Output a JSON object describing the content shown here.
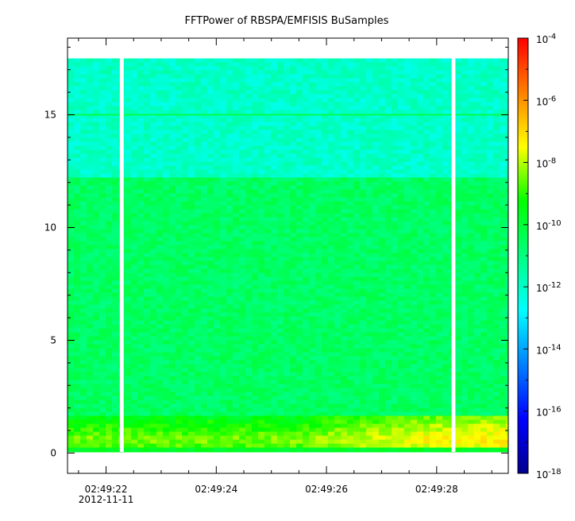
{
  "chart_data": {
    "type": "heatmap",
    "title": "FFTPower of RBSPA/EMFISIS  BuSamples",
    "xlabel": "",
    "ylabel": "",
    "x_axis": {
      "start": "02:49:21.3",
      "end": "02:49:29.3",
      "ticks": [
        {
          "time": "02:49:22",
          "label": "02:49:22",
          "sublabel": "2012-11-11"
        },
        {
          "time": "02:49:24",
          "label": "02:49:24",
          "sublabel": ""
        },
        {
          "time": "02:49:26",
          "label": "02:49:26",
          "sublabel": ""
        },
        {
          "time": "02:49:28",
          "label": "02:49:28",
          "sublabel": ""
        }
      ],
      "minor_ticks": [
        "02:49:21.5",
        "02:49:22.5",
        "02:49:23",
        "02:49:23.5",
        "02:49:24.5",
        "02:49:25",
        "02:49:25.5",
        "02:49:26.5",
        "02:49:27",
        "02:49:27.5",
        "02:49:28.5",
        "02:49:29"
      ]
    },
    "y_axis": {
      "range": [
        -0.9,
        18.4
      ],
      "ticks": [
        0,
        5,
        10,
        15
      ],
      "tick_labels": [
        "0",
        "5",
        "10",
        "15"
      ],
      "minor_ticks": [
        1,
        2,
        3,
        4,
        6,
        7,
        8,
        9,
        11,
        12,
        13,
        14,
        16,
        17,
        18
      ]
    },
    "colorbar": {
      "scale": "log",
      "range": [
        1e-18,
        0.0001
      ],
      "ticks": [
        {
          "exp": -4,
          "label": "10",
          "sup": "-4"
        },
        {
          "exp": -6,
          "label": "10",
          "sup": "-6"
        },
        {
          "exp": -8,
          "label": "10",
          "sup": "-8"
        },
        {
          "exp": -10,
          "label": "10",
          "sup": "-10"
        },
        {
          "exp": -12,
          "label": "10",
          "sup": "-12"
        },
        {
          "exp": -14,
          "label": "10",
          "sup": "-14"
        },
        {
          "exp": -16,
          "label": "10",
          "sup": "-16"
        },
        {
          "exp": -18,
          "label": "10",
          "sup": "-18"
        }
      ]
    },
    "data_extent": {
      "y_min": 0.05,
      "y_max": 17.5
    },
    "gaps": [
      {
        "start": "02:49:22.25",
        "end": "02:49:22.32"
      },
      {
        "start": "02:49:28.27",
        "end": "02:49:28.34"
      }
    ],
    "bands": [
      {
        "y_from": 12.2,
        "y_to": 17.5,
        "log_power": -12.0
      },
      {
        "y_from": 1.6,
        "y_to": 12.2,
        "log_power": -10.6
      },
      {
        "y_from": 0.05,
        "y_to": 1.6,
        "log_power": -7.5
      }
    ],
    "line_features": [
      {
        "y": 15.0,
        "log_power": -10.3,
        "description": "15"
      }
    ],
    "grid": false,
    "legend": "none"
  },
  "colors": {
    "background": "#ffffff",
    "axis": "#000000"
  }
}
